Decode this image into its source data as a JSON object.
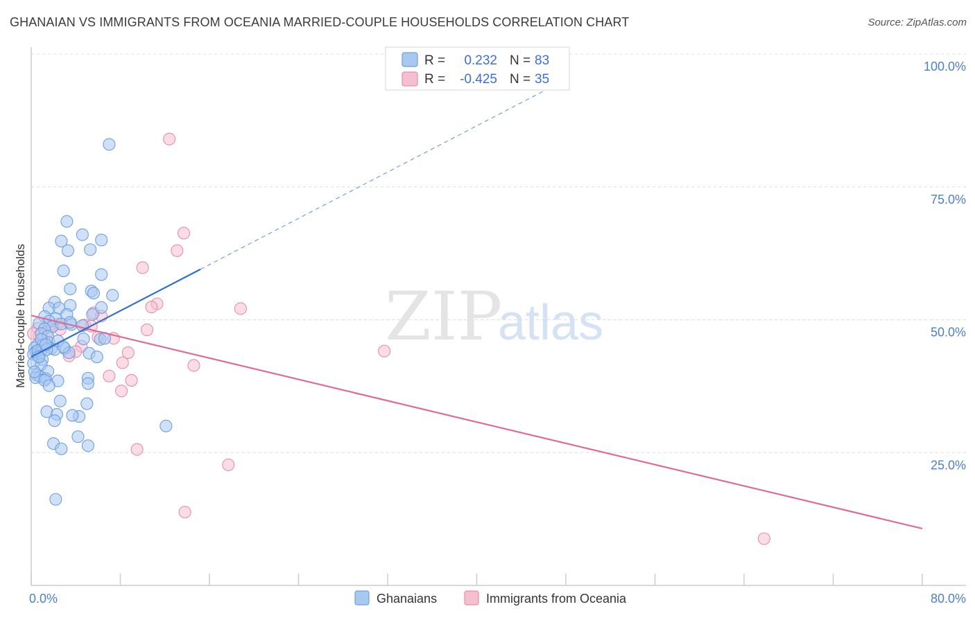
{
  "title": "GHANAIAN VS IMMIGRANTS FROM OCEANIA MARRIED-COUPLE HOUSEHOLDS CORRELATION CHART",
  "source": "Source: ZipAtlas.com",
  "watermark": {
    "zip": "ZIP",
    "atlas": "atlas"
  },
  "legend_top": {
    "row1": {
      "r_label": "R =",
      "r_value": "0.232",
      "n_label": "N =",
      "n_value": "83"
    },
    "row2": {
      "r_label": "R =",
      "r_value": "-0.425",
      "n_label": "N =",
      "n_value": "35"
    }
  },
  "legend_bottom": {
    "series1": "Ghanaians",
    "series2": "Immigrants from Oceania"
  },
  "colors": {
    "blue_fill": "#a9c8f0",
    "blue_stroke": "#6d9ee0",
    "blue_line": "#2f6fcf",
    "pink_fill": "#f6bfd0",
    "pink_stroke": "#e58fab",
    "pink_line": "#e06a94",
    "tick_text": "#4a7fd0"
  },
  "chart_data": {
    "type": "scatter",
    "title": "GHANAIAN VS IMMIGRANTS FROM OCEANIA MARRIED-COUPLE HOUSEHOLDS CORRELATION CHART",
    "xlabel": "",
    "ylabel": "Married-couple Households",
    "xlim": [
      0,
      80
    ],
    "ylim": [
      0,
      105
    ],
    "x_tick_labels": [
      "0.0%",
      "80.0%"
    ],
    "y_ticks": [
      25,
      50,
      75,
      100
    ],
    "y_tick_labels": [
      "25.0%",
      "50.0%",
      "75.0%",
      "100.0%"
    ],
    "series": [
      {
        "name": "Ghanaians",
        "r": 0.232,
        "n": 83,
        "trend": {
          "x0": 0,
          "y0": 43.0,
          "x1": 15.2,
          "y1": 59.5,
          "dash_to_x": 48.0,
          "dash_to_y": 95.2
        },
        "points": [
          [
            7.0,
            83.0
          ],
          [
            3.2,
            68.5
          ],
          [
            4.6,
            66.0
          ],
          [
            6.3,
            65.0
          ],
          [
            2.7,
            64.8
          ],
          [
            5.3,
            63.2
          ],
          [
            3.3,
            63.0
          ],
          [
            2.9,
            59.2
          ],
          [
            6.3,
            58.5
          ],
          [
            3.5,
            55.8
          ],
          [
            5.4,
            55.4
          ],
          [
            5.6,
            55.0
          ],
          [
            7.3,
            54.6
          ],
          [
            2.1,
            53.3
          ],
          [
            3.5,
            52.7
          ],
          [
            1.6,
            52.2
          ],
          [
            6.3,
            52.3
          ],
          [
            2.5,
            52.2
          ],
          [
            3.2,
            51.0
          ],
          [
            5.5,
            51.0
          ],
          [
            1.2,
            50.6
          ],
          [
            2.2,
            50.2
          ],
          [
            1.6,
            49.7
          ],
          [
            0.7,
            49.3
          ],
          [
            1.9,
            48.7
          ],
          [
            2.7,
            49.2
          ],
          [
            3.6,
            49.1
          ],
          [
            4.6,
            48.9
          ],
          [
            1.2,
            48.3
          ],
          [
            0.9,
            47.4
          ],
          [
            1.5,
            46.9
          ],
          [
            4.7,
            46.4
          ],
          [
            6.2,
            46.3
          ],
          [
            1.6,
            45.7
          ],
          [
            0.5,
            45.1
          ],
          [
            1.0,
            45.1
          ],
          [
            0.3,
            44.7
          ],
          [
            1.8,
            44.6
          ],
          [
            3.0,
            44.6
          ],
          [
            2.1,
            44.4
          ],
          [
            0.4,
            44.0
          ],
          [
            0.8,
            43.8
          ],
          [
            0.2,
            43.5
          ],
          [
            0.6,
            43.2
          ],
          [
            5.2,
            43.7
          ],
          [
            5.9,
            43.0
          ],
          [
            1.0,
            42.5
          ],
          [
            3.4,
            43.8
          ],
          [
            0.2,
            41.8
          ],
          [
            0.9,
            41.6
          ],
          [
            1.5,
            40.3
          ],
          [
            0.5,
            39.6
          ],
          [
            0.8,
            39.3
          ],
          [
            0.4,
            39.1
          ],
          [
            1.3,
            38.9
          ],
          [
            5.1,
            39.0
          ],
          [
            1.2,
            38.6
          ],
          [
            2.4,
            38.5
          ],
          [
            5.1,
            38.0
          ],
          [
            1.6,
            37.6
          ],
          [
            2.6,
            34.7
          ],
          [
            5.0,
            34.2
          ],
          [
            1.4,
            32.7
          ],
          [
            2.3,
            32.2
          ],
          [
            4.3,
            31.8
          ],
          [
            3.7,
            32.0
          ],
          [
            2.1,
            31.0
          ],
          [
            12.1,
            30.0
          ],
          [
            4.2,
            28.0
          ],
          [
            2.0,
            26.7
          ],
          [
            5.1,
            26.3
          ],
          [
            2.7,
            25.7
          ],
          [
            2.2,
            16.2
          ],
          [
            0.9,
            46.3
          ],
          [
            2.4,
            46.0
          ],
          [
            0.6,
            44.2
          ],
          [
            1.4,
            44.4
          ],
          [
            2.9,
            44.9
          ],
          [
            6.6,
            46.5
          ],
          [
            1.3,
            45.3
          ],
          [
            0.7,
            43.0
          ],
          [
            3.5,
            49.5
          ],
          [
            0.3,
            40.2
          ]
        ]
      },
      {
        "name": "Immigrants from Oceania",
        "r": -0.425,
        "n": 35,
        "trend": {
          "x0": 0,
          "y0": 50.8,
          "x1": 80,
          "y1": 10.7
        },
        "points": [
          [
            12.4,
            84.0
          ],
          [
            13.7,
            66.3
          ],
          [
            13.1,
            63.0
          ],
          [
            10.0,
            59.8
          ],
          [
            11.3,
            53.0
          ],
          [
            10.8,
            52.4
          ],
          [
            18.8,
            52.1
          ],
          [
            5.6,
            51.3
          ],
          [
            6.3,
            50.7
          ],
          [
            2.4,
            49.2
          ],
          [
            1.9,
            48.7
          ],
          [
            4.8,
            49.0
          ],
          [
            0.6,
            48.4
          ],
          [
            1.4,
            47.5
          ],
          [
            10.4,
            48.1
          ],
          [
            6.0,
            46.7
          ],
          [
            7.4,
            46.5
          ],
          [
            0.7,
            47.0
          ],
          [
            4.5,
            45.0
          ],
          [
            4.0,
            44.0
          ],
          [
            8.7,
            43.8
          ],
          [
            3.4,
            43.2
          ],
          [
            8.2,
            41.9
          ],
          [
            14.6,
            41.4
          ],
          [
            31.7,
            44.1
          ],
          [
            7.0,
            39.4
          ],
          [
            9.0,
            38.6
          ],
          [
            8.1,
            36.6
          ],
          [
            9.5,
            25.6
          ],
          [
            17.7,
            22.7
          ],
          [
            13.8,
            13.8
          ],
          [
            65.8,
            8.8
          ],
          [
            5.4,
            48.8
          ],
          [
            2.6,
            48.2
          ],
          [
            0.2,
            47.4
          ]
        ]
      }
    ]
  }
}
